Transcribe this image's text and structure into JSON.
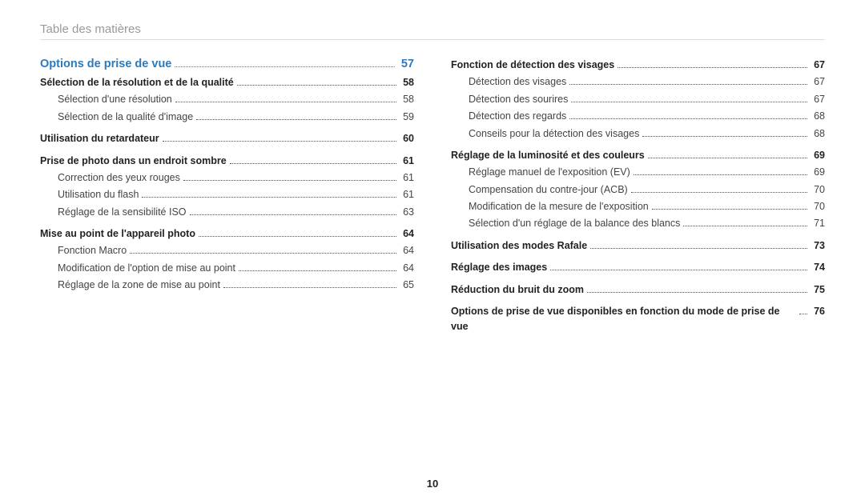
{
  "header": {
    "title": "Table des matières"
  },
  "pageNumber": "10",
  "section": {
    "title": "Options de prise de vue",
    "page": "57"
  },
  "leftColumn": [
    {
      "type": "bold",
      "label": "Sélection de la résolution et de la qualité",
      "page": "58"
    },
    {
      "type": "sub",
      "label": "Sélection d'une résolution",
      "page": "58"
    },
    {
      "type": "sub",
      "label": "Sélection de la qualité d'image",
      "page": "59"
    },
    {
      "type": "gap"
    },
    {
      "type": "bold",
      "label": "Utilisation du retardateur",
      "page": "60"
    },
    {
      "type": "gap"
    },
    {
      "type": "bold",
      "label": "Prise de photo dans un endroit sombre",
      "page": "61"
    },
    {
      "type": "sub",
      "label": "Correction des yeux rouges",
      "page": "61"
    },
    {
      "type": "sub",
      "label": "Utilisation du flash",
      "page": "61"
    },
    {
      "type": "sub",
      "label": "Réglage de la sensibilité ISO",
      "page": "63"
    },
    {
      "type": "gap"
    },
    {
      "type": "bold",
      "label": "Mise au point de l'appareil photo",
      "page": "64"
    },
    {
      "type": "sub",
      "label": "Fonction Macro",
      "page": "64"
    },
    {
      "type": "sub",
      "label": "Modification de l'option de mise au point",
      "page": "64"
    },
    {
      "type": "sub",
      "label": "Réglage de la zone de mise au point",
      "page": "65"
    }
  ],
  "rightColumn": [
    {
      "type": "bold",
      "label": "Fonction de détection des visages",
      "page": "67"
    },
    {
      "type": "sub",
      "label": "Détection des visages",
      "page": "67"
    },
    {
      "type": "sub",
      "label": "Détection des sourires",
      "page": "67"
    },
    {
      "type": "sub",
      "label": "Détection des regards",
      "page": "68"
    },
    {
      "type": "sub",
      "label": "Conseils pour la détection des visages",
      "page": "68"
    },
    {
      "type": "gap"
    },
    {
      "type": "bold",
      "label": "Réglage de la luminosité et des couleurs",
      "page": "69"
    },
    {
      "type": "sub",
      "label": "Réglage manuel de l'exposition (EV)",
      "page": "69"
    },
    {
      "type": "sub",
      "label": "Compensation du contre-jour (ACB)",
      "page": "70"
    },
    {
      "type": "sub",
      "label": "Modification de la mesure de l'exposition",
      "page": "70"
    },
    {
      "type": "sub",
      "label": "Sélection d'un réglage de la balance des blancs",
      "page": "71"
    },
    {
      "type": "gap"
    },
    {
      "type": "bold",
      "label": "Utilisation des modes Rafale",
      "page": "73"
    },
    {
      "type": "gap"
    },
    {
      "type": "bold",
      "label": "Réglage des images",
      "page": "74"
    },
    {
      "type": "gap"
    },
    {
      "type": "bold",
      "label": "Réduction du bruit du zoom",
      "page": "75"
    },
    {
      "type": "gap"
    },
    {
      "type": "bold",
      "label": "Options de prise de vue disponibles en fonction du mode de prise de vue",
      "page": "76"
    }
  ]
}
